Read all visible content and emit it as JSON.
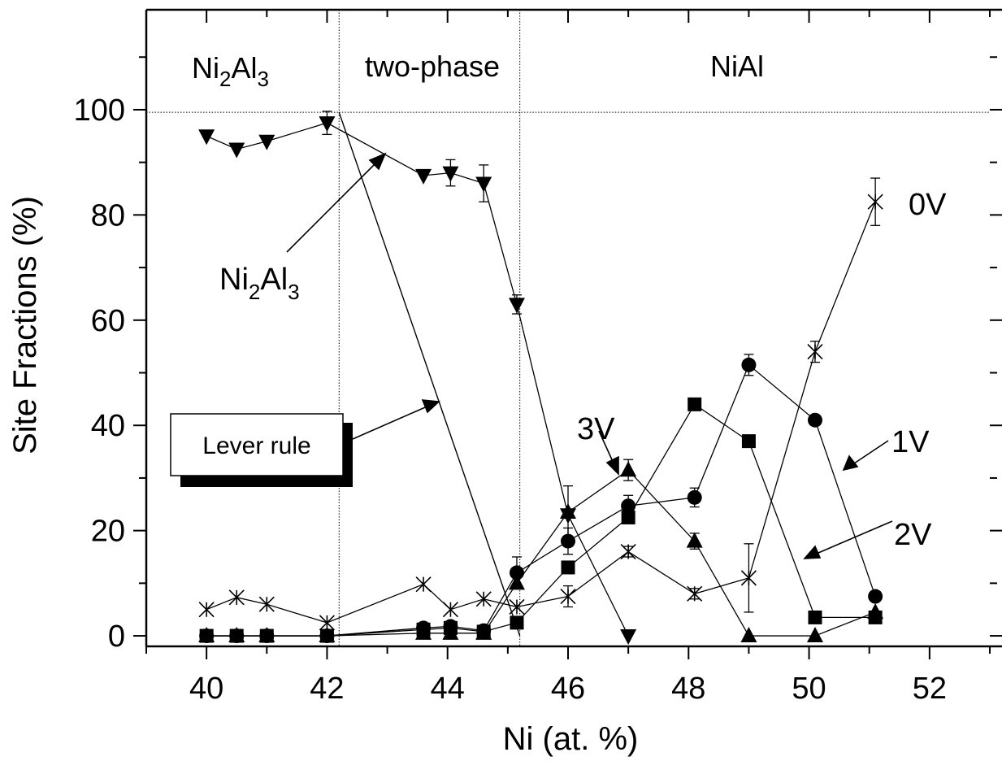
{
  "chart_data": {
    "type": "scatter",
    "xlabel": "Ni (at. %)",
    "ylabel": "Site Fractions (%)",
    "xlim": [
      39.0,
      53.0
    ],
    "ylim": [
      -2.0,
      119.0
    ],
    "x_ticks": [
      "40",
      "42",
      "44",
      "46",
      "48",
      "50",
      "52"
    ],
    "y_ticks": [
      "0",
      "20",
      "40",
      "60",
      "80",
      "100"
    ],
    "grid": false,
    "region_labels": [
      {
        "base": "Ni",
        "sub1": "2",
        "mid": "Al",
        "sub2": "3"
      },
      {
        "text": "two-phase"
      },
      {
        "text": "NiAl"
      }
    ],
    "region_boundaries_x": [
      42.2,
      45.2
    ],
    "reference_line_y": 99.5,
    "series": [
      {
        "name": "Ni2Al3",
        "marker": "triangle-down",
        "points": [
          {
            "x": 40.0,
            "y": 95.0
          },
          {
            "x": 40.5,
            "y": 92.5
          },
          {
            "x": 41.0,
            "y": 94.0
          },
          {
            "x": 42.0,
            "y": 97.5,
            "err": 2.2
          },
          {
            "x": 43.6,
            "y": 87.5
          },
          {
            "x": 44.05,
            "y": 88.0,
            "err": 2.5
          },
          {
            "x": 44.6,
            "y": 86.0,
            "err": 3.5
          },
          {
            "x": 45.15,
            "y": 63.0,
            "err": 1.8
          },
          {
            "x": 46.0,
            "y": 23.0,
            "err": 5.5
          },
          {
            "x": 47.0,
            "y": 0.0
          }
        ]
      },
      {
        "name": "0V",
        "marker": "cross",
        "points": [
          {
            "x": 40.0,
            "y": 5.0
          },
          {
            "x": 40.5,
            "y": 7.3
          },
          {
            "x": 41.0,
            "y": 6.0
          },
          {
            "x": 42.0,
            "y": 2.5
          },
          {
            "x": 43.6,
            "y": 9.8
          },
          {
            "x": 44.05,
            "y": 5.0
          },
          {
            "x": 44.6,
            "y": 7.0
          },
          {
            "x": 45.15,
            "y": 5.5
          },
          {
            "x": 46.0,
            "y": 7.5,
            "err": 2.0
          },
          {
            "x": 47.0,
            "y": 16.0,
            "err": 1.0
          },
          {
            "x": 48.1,
            "y": 8.0,
            "err": 1.0
          },
          {
            "x": 49.0,
            "y": 11.0,
            "err": 6.5
          },
          {
            "x": 50.1,
            "y": 54.0,
            "err": 2.0
          },
          {
            "x": 51.1,
            "y": 82.5,
            "err": 4.5
          }
        ]
      },
      {
        "name": "1V",
        "marker": "circle",
        "points": [
          {
            "x": 40.0,
            "y": 0.0
          },
          {
            "x": 40.5,
            "y": 0.0
          },
          {
            "x": 41.0,
            "y": 0.0
          },
          {
            "x": 42.0,
            "y": 0.0
          },
          {
            "x": 43.6,
            "y": 1.5
          },
          {
            "x": 44.05,
            "y": 1.8
          },
          {
            "x": 44.6,
            "y": 1.0
          },
          {
            "x": 45.15,
            "y": 12.0,
            "err": 3.0
          },
          {
            "x": 46.0,
            "y": 18.0,
            "err": 2.5
          },
          {
            "x": 47.0,
            "y": 24.7,
            "err": 2.0
          },
          {
            "x": 48.1,
            "y": 26.3,
            "err": 1.8
          },
          {
            "x": 49.0,
            "y": 51.5,
            "err": 2.0
          },
          {
            "x": 50.1,
            "y": 41.0
          },
          {
            "x": 51.1,
            "y": 7.5
          }
        ]
      },
      {
        "name": "2V",
        "marker": "square",
        "points": [
          {
            "x": 40.0,
            "y": 0.0
          },
          {
            "x": 40.5,
            "y": 0.0
          },
          {
            "x": 41.0,
            "y": 0.0
          },
          {
            "x": 42.0,
            "y": 0.0
          },
          {
            "x": 43.6,
            "y": 1.2
          },
          {
            "x": 44.05,
            "y": 1.5
          },
          {
            "x": 44.6,
            "y": 0.8
          },
          {
            "x": 45.15,
            "y": 2.5
          },
          {
            "x": 46.0,
            "y": 13.0
          },
          {
            "x": 47.0,
            "y": 22.5
          },
          {
            "x": 48.1,
            "y": 44.0
          },
          {
            "x": 49.0,
            "y": 37.0
          },
          {
            "x": 50.1,
            "y": 3.5
          },
          {
            "x": 51.1,
            "y": 3.5
          }
        ]
      },
      {
        "name": "3V",
        "marker": "triangle-up",
        "points": [
          {
            "x": 40.0,
            "y": 0.0
          },
          {
            "x": 40.5,
            "y": 0.0
          },
          {
            "x": 41.0,
            "y": 0.0
          },
          {
            "x": 42.0,
            "y": 0.0
          },
          {
            "x": 43.6,
            "y": 0.5
          },
          {
            "x": 44.05,
            "y": 0.5
          },
          {
            "x": 44.6,
            "y": 0.5
          },
          {
            "x": 45.15,
            "y": 10.0
          },
          {
            "x": 46.0,
            "y": 23.5
          },
          {
            "x": 47.0,
            "y": 31.5,
            "err": 2.0
          },
          {
            "x": 48.1,
            "y": 18.0,
            "err": 1.5
          },
          {
            "x": 49.0,
            "y": 0.0
          },
          {
            "x": 50.1,
            "y": 0.0
          },
          {
            "x": 51.1,
            "y": 4.5
          }
        ]
      }
    ],
    "lever_rule": {
      "label": "Lever rule",
      "points": [
        {
          "x": 42.2,
          "y": 99.5
        },
        {
          "x": 45.2,
          "y": 0.0
        }
      ]
    },
    "annotations": [
      {
        "base": "Ni",
        "sub1": "2",
        "mid": "Al",
        "sub2": "3"
      },
      {
        "text": "0V"
      },
      {
        "text": "1V"
      },
      {
        "text": "2V"
      },
      {
        "text": "3V"
      }
    ]
  },
  "colors": {
    "ink": "#000000",
    "background": "#ffffff"
  }
}
